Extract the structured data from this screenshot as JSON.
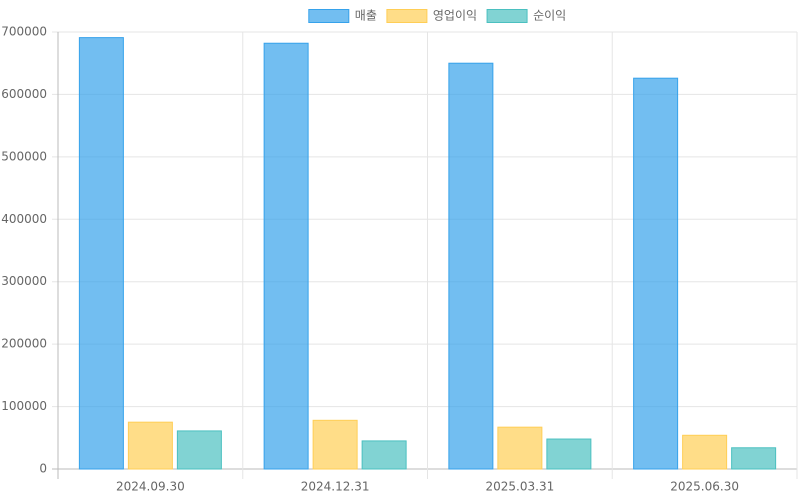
{
  "chart_data": {
    "type": "bar",
    "categories": [
      "2024.09.30",
      "2024.12.31",
      "2025.03.31",
      "2025.06.30"
    ],
    "series": [
      {
        "name": "매출",
        "color": "#36a2eb",
        "values": [
          691000,
          682000,
          650000,
          626000
        ]
      },
      {
        "name": "영업이익",
        "color": "#ffce56",
        "values": [
          75000,
          78000,
          67000,
          54000
        ]
      },
      {
        "name": "순이익",
        "color": "#4bc0c0",
        "values": [
          61000,
          45000,
          48000,
          34000
        ]
      }
    ],
    "ylim": [
      0,
      700000
    ],
    "yticks": [
      0,
      100000,
      200000,
      300000,
      400000,
      500000,
      600000,
      700000
    ],
    "grid": true,
    "legend": "top"
  }
}
